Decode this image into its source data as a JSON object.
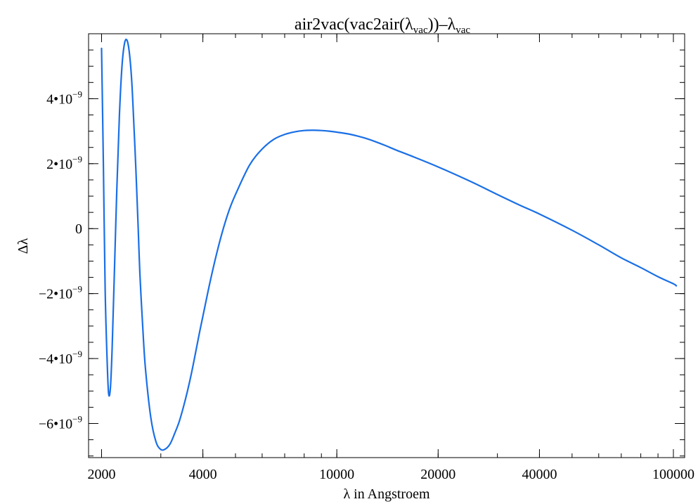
{
  "chart_data": {
    "type": "line",
    "title": {
      "parts": [
        {
          "text": "air2vac(vac2air(λ"
        },
        {
          "text": "vac",
          "sub": true
        },
        {
          "text": "))–λ"
        },
        {
          "text": "vac",
          "sub": true
        }
      ]
    },
    "xlabel": "λ in Angstroem",
    "ylabel": "Δλ",
    "x_scale": "log",
    "xlim": [
      1830,
      108000
    ],
    "ylim": [
      -7.05e-09,
      6e-09
    ],
    "x_ticks": [
      {
        "value": 2000,
        "label": "2000"
      },
      {
        "value": 4000,
        "label": "4000"
      },
      {
        "value": 10000,
        "label": "10000"
      },
      {
        "value": 20000,
        "label": "20000"
      },
      {
        "value": 40000,
        "label": "40000"
      },
      {
        "value": 100000,
        "label": "100000"
      }
    ],
    "y_ticks": [
      {
        "value": 4e-09,
        "mantissa": "4•10",
        "exponent": "−9"
      },
      {
        "value": 2e-09,
        "mantissa": "2•10",
        "exponent": "−9"
      },
      {
        "value": 0,
        "mantissa": "0",
        "exponent": ""
      },
      {
        "value": -2e-09,
        "mantissa": "−2•10",
        "exponent": "−9"
      },
      {
        "value": -4e-09,
        "mantissa": "−4•10",
        "exponent": "−9"
      },
      {
        "value": -6e-09,
        "mantissa": "−6•10",
        "exponent": "−9"
      }
    ],
    "grid": false,
    "legend": "none",
    "color": "#1a6fe6",
    "series": [
      {
        "x": [
          2000,
          2025,
          2050,
          2080,
          2100,
          2125,
          2150,
          2180,
          2220,
          2260,
          2300,
          2340,
          2380,
          2420,
          2460,
          2500,
          2530,
          2570,
          2600,
          2650,
          2700,
          2800,
          2900,
          3000,
          3100,
          3200,
          3300,
          3400,
          3500,
          3600,
          3700,
          3800,
          3900,
          4000,
          4200,
          4400,
          4600,
          4800,
          5000,
          5500,
          6000,
          6500,
          7000,
          7500,
          8000,
          8500,
          9000,
          9500,
          10000,
          11000,
          12000,
          13000,
          14000,
          15000,
          17000,
          20000,
          25000,
          30000,
          35000,
          40000,
          50000,
          60000,
          70000,
          80000,
          90000,
          100000,
          102000
        ],
        "y": [
          5.55e-09,
          2e-09,
          -1.9e-09,
          -4.2e-09,
          -5.1e-09,
          -4.9e-09,
          -3.7e-09,
          -1.6e-09,
          1.2e-09,
          3.5e-09,
          5e-09,
          5.7e-09,
          5.8e-09,
          5.4e-09,
          4.5e-09,
          3e-09,
          1.8e-09,
          0.0,
          -1.4e-09,
          -3e-09,
          -4.3e-09,
          -5.8e-09,
          -6.55e-09,
          -6.8e-09,
          -6.78e-09,
          -6.62e-09,
          -6.3e-09,
          -5.95e-09,
          -5.5e-09,
          -5e-09,
          -4.45e-09,
          -3.85e-09,
          -3.25e-09,
          -2.7e-09,
          -1.65e-09,
          -7.5e-10,
          0.0,
          6e-10,
          1.05e-09,
          1.95e-09,
          2.45e-09,
          2.75e-09,
          2.9e-09,
          2.98e-09,
          3.02e-09,
          3.03e-09,
          3.02e-09,
          3e-09,
          2.97e-09,
          2.9e-09,
          2.8e-09,
          2.68e-09,
          2.55e-09,
          2.42e-09,
          2.2e-09,
          1.9e-09,
          1.45e-09,
          1.05e-09,
          7.2e-10,
          4.5e-10,
          -5e-11,
          -5e-10,
          -9e-10,
          -1.2e-09,
          -1.48e-09,
          -1.7e-09,
          -1.76e-09
        ]
      }
    ]
  }
}
